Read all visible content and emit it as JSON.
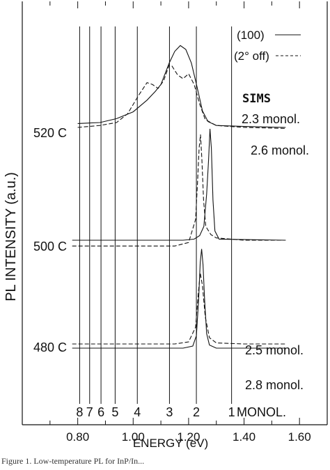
{
  "chart_data": {
    "type": "line",
    "xlabel": "ENERGY (eV)",
    "ylabel": "PL INTENSITY (a.u.)",
    "xlim": [
      0.6,
      1.7
    ],
    "x_ticks": [
      "0.80",
      "1.00",
      "1.20",
      "1.40",
      "1.60"
    ],
    "x_tick_values": [
      0.8,
      1.0,
      1.2,
      1.4,
      1.6
    ],
    "legend": {
      "placement": "top-right",
      "entries": [
        {
          "label": "(100)",
          "style": "solid"
        },
        {
          "label": "(2° off)",
          "style": "dashed"
        }
      ]
    },
    "monolayer_lines": {
      "label": "MONOL.",
      "markers": [
        {
          "n": "8",
          "energy": 0.807
        },
        {
          "n": "7",
          "energy": 0.843
        },
        {
          "n": "6",
          "energy": 0.884
        },
        {
          "n": "5",
          "energy": 0.935
        },
        {
          "n": "4",
          "energy": 1.015
        },
        {
          "n": "3",
          "energy": 1.131
        },
        {
          "n": "2",
          "energy": 1.228
        },
        {
          "n": "1",
          "energy": 1.355
        }
      ]
    },
    "sims_label": "SIMS",
    "traces": [
      {
        "temperature_label": "520 C",
        "sims_solid": "2.3 monol.",
        "sims_dashed": "2.6 monol.",
        "series": [
          {
            "name": "(100)",
            "style": "solid",
            "points": [
              [
                0.8,
                0.04
              ],
              [
                0.88,
                0.05
              ],
              [
                0.94,
                0.09
              ],
              [
                1.0,
                0.16
              ],
              [
                1.05,
                0.28
              ],
              [
                1.08,
                0.37
              ],
              [
                1.1,
                0.44
              ],
              [
                1.13,
                0.66
              ],
              [
                1.15,
                0.78
              ],
              [
                1.17,
                0.84
              ],
              [
                1.19,
                0.8
              ],
              [
                1.21,
                0.66
              ],
              [
                1.23,
                0.42
              ],
              [
                1.25,
                0.17
              ],
              [
                1.27,
                0.06
              ],
              [
                1.3,
                0.02
              ],
              [
                1.4,
                0.01
              ],
              [
                1.55,
                0.0
              ]
            ]
          },
          {
            "name": "(2° off)",
            "style": "dashed",
            "points": [
              [
                0.8,
                0.0
              ],
              [
                0.88,
                0.02
              ],
              [
                0.94,
                0.05
              ],
              [
                0.98,
                0.14
              ],
              [
                1.02,
                0.33
              ],
              [
                1.05,
                0.46
              ],
              [
                1.07,
                0.44
              ],
              [
                1.09,
                0.4
              ],
              [
                1.11,
                0.48
              ],
              [
                1.13,
                0.64
              ],
              [
                1.14,
                0.63
              ],
              [
                1.16,
                0.54
              ],
              [
                1.18,
                0.5
              ],
              [
                1.2,
                0.55
              ],
              [
                1.22,
                0.44
              ],
              [
                1.24,
                0.24
              ],
              [
                1.26,
                0.08
              ],
              [
                1.3,
                0.02
              ],
              [
                1.4,
                0.0
              ],
              [
                1.55,
                -0.01
              ]
            ]
          }
        ]
      },
      {
        "temperature_label": "500 C",
        "sims_solid": "",
        "sims_dashed": "",
        "series": [
          {
            "name": "(100)",
            "style": "solid",
            "points": [
              [
                0.78,
                0.0
              ],
              [
                1.18,
                0.0
              ],
              [
                1.22,
                0.01
              ],
              [
                1.24,
                0.04
              ],
              [
                1.255,
                0.12
              ],
              [
                1.265,
                0.4
              ],
              [
                1.272,
                0.7
              ],
              [
                1.277,
                0.97
              ],
              [
                1.282,
                0.8
              ],
              [
                1.288,
                0.35
              ],
              [
                1.295,
                0.08
              ],
              [
                1.31,
                0.01
              ],
              [
                1.55,
                0.0
              ]
            ]
          },
          {
            "name": "(2° off)",
            "style": "dashed",
            "points": [
              [
                0.78,
                -0.05
              ],
              [
                1.15,
                -0.05
              ],
              [
                1.2,
                -0.02
              ],
              [
                1.225,
                0.18
              ],
              [
                1.232,
                0.5
              ],
              [
                1.238,
                0.8
              ],
              [
                1.243,
                0.92
              ],
              [
                1.248,
                0.7
              ],
              [
                1.254,
                0.35
              ],
              [
                1.262,
                0.12
              ],
              [
                1.28,
                0.05
              ],
              [
                1.3,
                0.02
              ],
              [
                1.4,
                0.0
              ],
              [
                1.55,
                0.0
              ]
            ]
          }
        ]
      },
      {
        "temperature_label": "480 C",
        "sims_solid": "2.5 monol.",
        "sims_dashed": "2.8 monol.",
        "series": [
          {
            "name": "(100)",
            "style": "solid",
            "points": [
              [
                0.78,
                0.0
              ],
              [
                1.18,
                0.0
              ],
              [
                1.215,
                0.02
              ],
              [
                1.228,
                0.12
              ],
              [
                1.236,
                0.45
              ],
              [
                1.242,
                0.82
              ],
              [
                1.247,
                0.95
              ],
              [
                1.252,
                0.8
              ],
              [
                1.258,
                0.45
              ],
              [
                1.265,
                0.14
              ],
              [
                1.275,
                0.03
              ],
              [
                1.3,
                0.0
              ],
              [
                1.55,
                0.0
              ]
            ]
          },
          {
            "name": "(2° off)",
            "style": "dashed",
            "points": [
              [
                0.78,
                0.04
              ],
              [
                1.15,
                0.04
              ],
              [
                1.2,
                0.06
              ],
              [
                1.225,
                0.2
              ],
              [
                1.235,
                0.52
              ],
              [
                1.242,
                0.72
              ],
              [
                1.25,
                0.6
              ],
              [
                1.26,
                0.3
              ],
              [
                1.275,
                0.1
              ],
              [
                1.3,
                0.05
              ],
              [
                1.4,
                0.04
              ],
              [
                1.55,
                0.04
              ]
            ]
          }
        ]
      }
    ]
  },
  "caption": "Figure 1. Low-temperature PL for InP/In..."
}
